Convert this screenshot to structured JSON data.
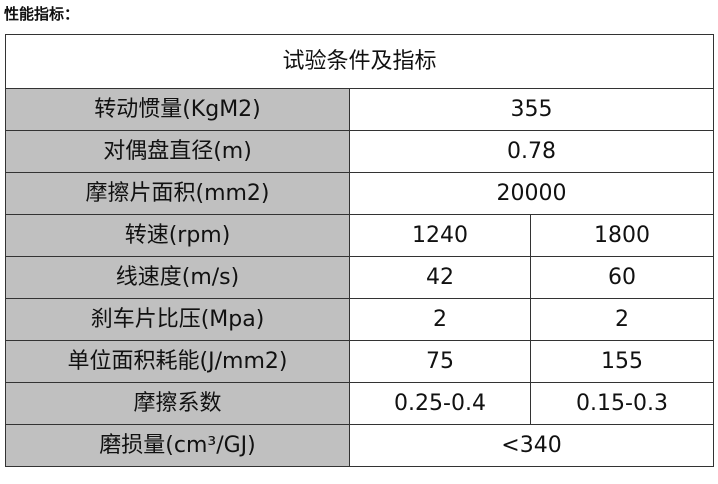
{
  "heading": "性能指标：",
  "table": {
    "title": "试验条件及指标",
    "rows": [
      {
        "label": "转动惯量(KgM2)",
        "values": [
          "355"
        ]
      },
      {
        "label": "对偶盘直径(m)",
        "values": [
          "0.78"
        ]
      },
      {
        "label": "摩擦片面积(mm2)",
        "values": [
          "20000"
        ]
      },
      {
        "label": "转速(rpm)",
        "values": [
          "1240",
          "1800"
        ]
      },
      {
        "label": "线速度(m/s)",
        "values": [
          "42",
          "60"
        ]
      },
      {
        "label": "刹车片比压(Mpa)",
        "values": [
          "2",
          "2"
        ]
      },
      {
        "label": "单位面积耗能(J/mm2)",
        "values": [
          "75",
          "155"
        ]
      },
      {
        "label": "摩擦系数",
        "values": [
          "0.25-0.4",
          "0.15-0.3"
        ]
      },
      {
        "label": "磨损量(cm³/GJ)",
        "values": [
          "<340"
        ]
      }
    ]
  },
  "colors": {
    "label_bg": "#c0c0c0",
    "border": "#333333"
  }
}
